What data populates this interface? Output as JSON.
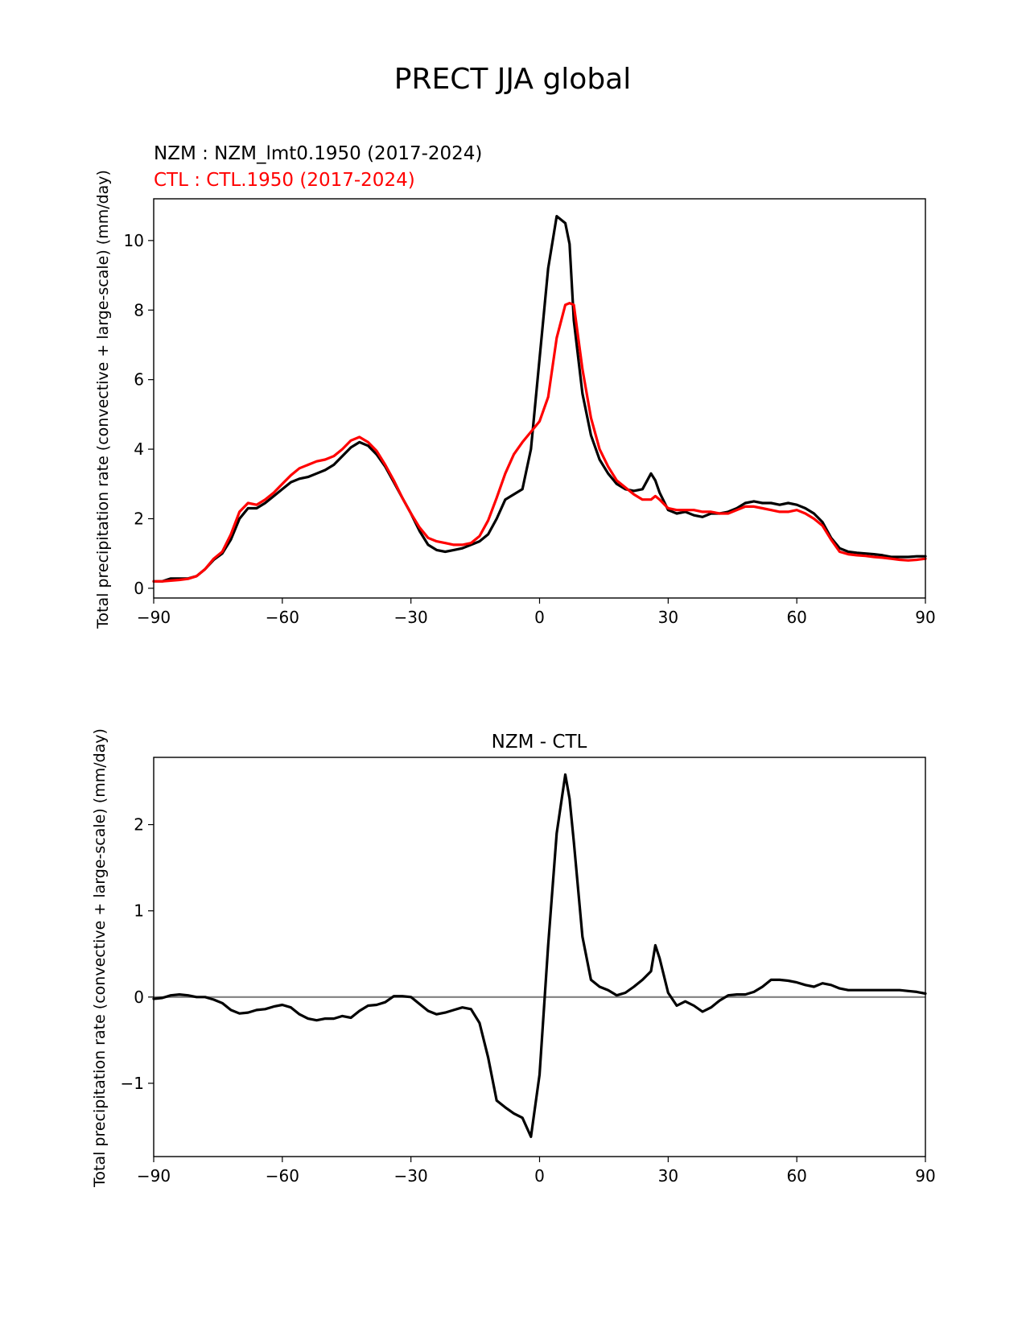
{
  "figure_title": "PRECT JJA global",
  "colors": {
    "nzm": "#000000",
    "ctl": "#ff0000",
    "diff": "#000000",
    "zero_line": "#808080",
    "axes": "#000000"
  },
  "chart_data": [
    {
      "type": "line",
      "legend": [
        {
          "name": "NZM",
          "text": "NZM  : NZM_lmt0.1950 (2017-2024)",
          "color": "#000000"
        },
        {
          "name": "CTL",
          "text": "CTL : CTL.1950 (2017-2024)",
          "color": "#ff0000"
        }
      ],
      "xlabel": "",
      "ylabel": "Total precipitation rate (convective + large-scale) (mm/day)",
      "xlim": [
        -90,
        90
      ],
      "ylim": [
        -0.28,
        11.2
      ],
      "xticks": [
        -90,
        -60,
        -30,
        0,
        30,
        60,
        90
      ],
      "xtick_labels": [
        "−90",
        "−60",
        "−30",
        "0",
        "30",
        "60",
        "90"
      ],
      "yticks": [
        0,
        2,
        4,
        6,
        8,
        10
      ],
      "ytick_labels": [
        "0",
        "2",
        "4",
        "6",
        "8",
        "10"
      ],
      "series": [
        {
          "name": "NZM",
          "color": "#000000",
          "x": [
            -90,
            -88,
            -86,
            -84,
            -82,
            -80,
            -78,
            -76,
            -74,
            -72,
            -70,
            -68,
            -66,
            -64,
            -62,
            -60,
            -58,
            -56,
            -54,
            -52,
            -50,
            -48,
            -46,
            -44,
            -42,
            -40,
            -38,
            -36,
            -34,
            -32,
            -30,
            -28,
            -26,
            -24,
            -22,
            -20,
            -18,
            -16,
            -14,
            -12,
            -10,
            -8,
            -6,
            -4,
            -2,
            0,
            2,
            4,
            6,
            7,
            8,
            10,
            12,
            14,
            16,
            18,
            20,
            22,
            24,
            26,
            27,
            28,
            30,
            32,
            34,
            36,
            38,
            40,
            42,
            44,
            46,
            48,
            50,
            52,
            54,
            56,
            58,
            60,
            62,
            64,
            66,
            68,
            70,
            72,
            74,
            76,
            78,
            80,
            82,
            84,
            86,
            88,
            90
          ],
          "y": [
            0.2,
            0.2,
            0.28,
            0.28,
            0.28,
            0.35,
            0.55,
            0.82,
            1.0,
            1.4,
            2.0,
            2.3,
            2.3,
            2.45,
            2.65,
            2.85,
            3.05,
            3.15,
            3.2,
            3.3,
            3.4,
            3.55,
            3.8,
            4.05,
            4.2,
            4.1,
            3.85,
            3.5,
            3.05,
            2.6,
            2.15,
            1.65,
            1.25,
            1.1,
            1.05,
            1.1,
            1.15,
            1.25,
            1.35,
            1.55,
            2.0,
            2.55,
            2.7,
            2.85,
            4.0,
            6.6,
            9.2,
            10.7,
            10.5,
            9.9,
            7.7,
            5.6,
            4.4,
            3.7,
            3.3,
            3.0,
            2.85,
            2.8,
            2.85,
            3.3,
            3.1,
            2.75,
            2.25,
            2.15,
            2.2,
            2.1,
            2.05,
            2.15,
            2.15,
            2.2,
            2.3,
            2.45,
            2.5,
            2.45,
            2.45,
            2.4,
            2.45,
            2.4,
            2.3,
            2.15,
            1.9,
            1.45,
            1.15,
            1.05,
            1.02,
            1.0,
            0.98,
            0.95,
            0.9,
            0.9,
            0.9,
            0.92,
            0.92
          ]
        },
        {
          "name": "CTL",
          "color": "#ff0000",
          "x": [
            -90,
            -88,
            -86,
            -84,
            -82,
            -80,
            -78,
            -76,
            -74,
            -72,
            -70,
            -68,
            -66,
            -64,
            -62,
            -60,
            -58,
            -56,
            -54,
            -52,
            -50,
            -48,
            -46,
            -44,
            -42,
            -40,
            -38,
            -36,
            -34,
            -32,
            -30,
            -28,
            -26,
            -24,
            -22,
            -20,
            -18,
            -16,
            -14,
            -12,
            -10,
            -8,
            -6,
            -4,
            -2,
            0,
            2,
            4,
            6,
            7,
            8,
            10,
            12,
            14,
            16,
            18,
            20,
            22,
            24,
            26,
            27,
            28,
            30,
            32,
            34,
            36,
            38,
            40,
            42,
            44,
            46,
            48,
            50,
            52,
            54,
            56,
            58,
            60,
            62,
            64,
            66,
            68,
            70,
            72,
            74,
            76,
            78,
            80,
            82,
            84,
            86,
            88,
            90
          ],
          "y": [
            0.2,
            0.2,
            0.22,
            0.24,
            0.27,
            0.35,
            0.55,
            0.85,
            1.05,
            1.55,
            2.2,
            2.45,
            2.4,
            2.55,
            2.75,
            3.0,
            3.25,
            3.45,
            3.55,
            3.65,
            3.7,
            3.8,
            4.0,
            4.25,
            4.35,
            4.2,
            3.95,
            3.55,
            3.1,
            2.6,
            2.15,
            1.75,
            1.45,
            1.35,
            1.3,
            1.25,
            1.25,
            1.3,
            1.5,
            1.95,
            2.6,
            3.3,
            3.85,
            4.2,
            4.5,
            4.8,
            5.5,
            7.2,
            8.15,
            8.2,
            8.15,
            6.3,
            4.9,
            4.0,
            3.5,
            3.1,
            2.9,
            2.7,
            2.55,
            2.55,
            2.65,
            2.55,
            2.3,
            2.25,
            2.25,
            2.25,
            2.2,
            2.2,
            2.15,
            2.15,
            2.25,
            2.35,
            2.35,
            2.3,
            2.25,
            2.2,
            2.2,
            2.25,
            2.15,
            2.0,
            1.8,
            1.4,
            1.05,
            0.98,
            0.95,
            0.93,
            0.9,
            0.88,
            0.85,
            0.82,
            0.8,
            0.82,
            0.85
          ]
        }
      ]
    },
    {
      "type": "line",
      "title": "NZM - CTL",
      "xlabel": "",
      "ylabel": "Total precipitation rate (convective + large-scale) (mm/day)",
      "xlim": [
        -90,
        90
      ],
      "ylim": [
        -1.85,
        2.78
      ],
      "xticks": [
        -90,
        -60,
        -30,
        0,
        30,
        60,
        90
      ],
      "xtick_labels": [
        "−90",
        "−60",
        "−30",
        "0",
        "30",
        "60",
        "90"
      ],
      "yticks": [
        -1,
        0,
        1,
        2
      ],
      "ytick_labels": [
        "−1",
        "0",
        "1",
        "2"
      ],
      "zero_line": true,
      "series": [
        {
          "name": "NZM - CTL",
          "color": "#000000",
          "x": [
            -90,
            -88,
            -86,
            -84,
            -82,
            -80,
            -78,
            -76,
            -74,
            -72,
            -70,
            -68,
            -66,
            -64,
            -62,
            -60,
            -58,
            -56,
            -54,
            -52,
            -50,
            -48,
            -46,
            -44,
            -42,
            -40,
            -38,
            -36,
            -34,
            -32,
            -30,
            -28,
            -26,
            -24,
            -22,
            -20,
            -18,
            -16,
            -14,
            -12,
            -10,
            -8,
            -6,
            -4,
            -2,
            0,
            2,
            4,
            6,
            7,
            8,
            10,
            12,
            14,
            16,
            18,
            20,
            22,
            24,
            26,
            27,
            28,
            30,
            32,
            34,
            36,
            38,
            40,
            42,
            44,
            46,
            48,
            50,
            52,
            54,
            56,
            58,
            60,
            62,
            64,
            66,
            68,
            70,
            72,
            74,
            76,
            78,
            80,
            82,
            84,
            86,
            88,
            90
          ],
          "y": [
            -0.02,
            -0.01,
            0.02,
            0.03,
            0.02,
            0.0,
            0.0,
            -0.03,
            -0.07,
            -0.15,
            -0.19,
            -0.18,
            -0.15,
            -0.14,
            -0.11,
            -0.09,
            -0.12,
            -0.2,
            -0.25,
            -0.27,
            -0.25,
            -0.25,
            -0.22,
            -0.24,
            -0.16,
            -0.1,
            -0.09,
            -0.06,
            0.01,
            0.01,
            0.0,
            -0.08,
            -0.16,
            -0.2,
            -0.18,
            -0.15,
            -0.12,
            -0.14,
            -0.3,
            -0.7,
            -1.2,
            -1.28,
            -1.35,
            -1.4,
            -1.62,
            -0.9,
            0.6,
            1.9,
            2.58,
            2.3,
            1.8,
            0.7,
            0.2,
            0.12,
            0.08,
            0.02,
            0.05,
            0.12,
            0.2,
            0.3,
            0.6,
            0.45,
            0.05,
            -0.1,
            -0.05,
            -0.1,
            -0.17,
            -0.12,
            -0.04,
            0.02,
            0.03,
            0.03,
            0.06,
            0.12,
            0.2,
            0.2,
            0.19,
            0.17,
            0.14,
            0.12,
            0.16,
            0.14,
            0.1,
            0.08,
            0.08,
            0.08,
            0.08,
            0.08,
            0.08,
            0.08,
            0.07,
            0.06,
            0.04
          ]
        }
      ]
    }
  ]
}
